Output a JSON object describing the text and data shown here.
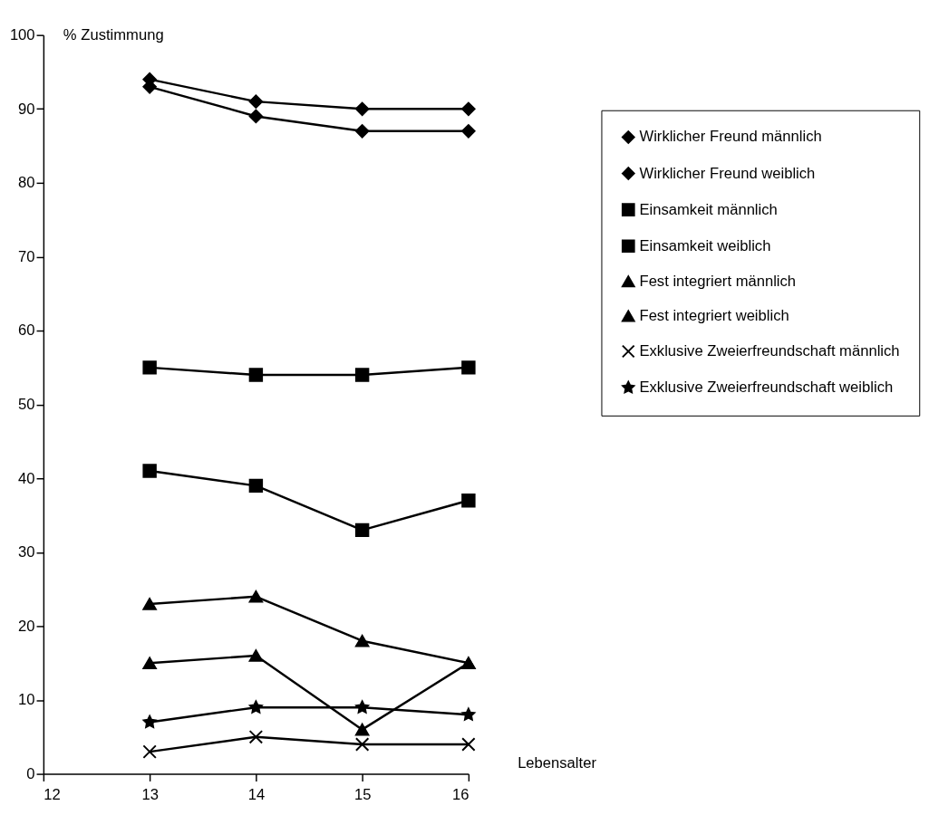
{
  "chart_data": {
    "type": "line",
    "xlabel": "Lebensalter",
    "ylabel": "% Zustimmung",
    "x": [
      13,
      14,
      15,
      16
    ],
    "xlim": [
      12,
      16
    ],
    "xticks": [
      12,
      13,
      14,
      15,
      16
    ],
    "ylim": [
      0,
      100
    ],
    "yticks": [
      0,
      10,
      20,
      30,
      40,
      50,
      60,
      70,
      80,
      90,
      100
    ],
    "grid": false,
    "legend": "right",
    "line_style": "solid",
    "series": [
      {
        "name": "Wirklicher Freund männlich",
        "color": "#000000",
        "marker": "diamond",
        "values": [
          94,
          91,
          90,
          90
        ]
      },
      {
        "name": "Wirklicher Freund weiblich",
        "color": "#000000",
        "marker": "diamond",
        "values": [
          93,
          89,
          87,
          87
        ]
      },
      {
        "name": "Einsamkeit männlich",
        "color": "#000000",
        "marker": "square",
        "values": [
          41,
          39,
          33,
          37
        ]
      },
      {
        "name": "Einsamkeit weiblich",
        "color": "#000000",
        "marker": "square",
        "values": [
          55,
          54,
          54,
          55
        ]
      },
      {
        "name": "Fest integriert männlich",
        "color": "#000000",
        "marker": "triangle",
        "values": [
          23,
          24,
          18,
          15
        ]
      },
      {
        "name": "Fest integriert weiblich",
        "color": "#000000",
        "marker": "triangle",
        "values": [
          15,
          16,
          6,
          15
        ]
      },
      {
        "name": "Exklusive Zweierfreundschaft männlich",
        "color": "#000000",
        "marker": "cross",
        "values": [
          3,
          5,
          4,
          4
        ]
      },
      {
        "name": "Exklusive Zweierfreundschaft weiblich",
        "color": "#000000",
        "marker": "star",
        "values": [
          7,
          9,
          9,
          8
        ]
      }
    ]
  }
}
